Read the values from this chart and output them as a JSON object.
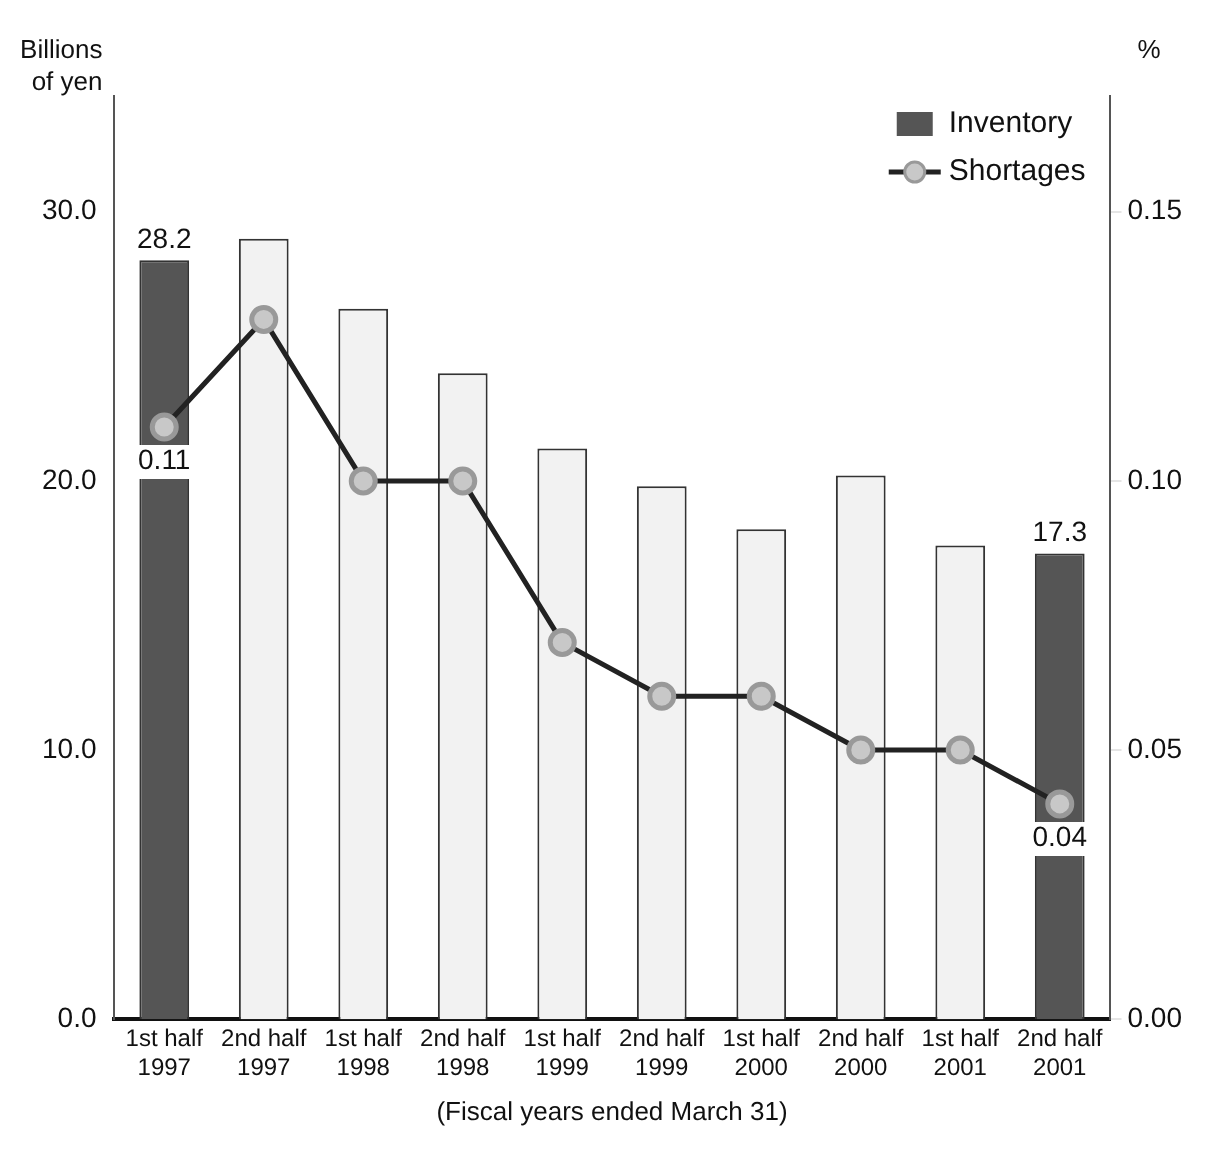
{
  "chart_data": {
    "type": "bar",
    "xlabel": "(Fiscal years ended March 31)",
    "ylabel": "Billions of yen",
    "y2label": "%",
    "categories": [
      "1st half 1997",
      "2nd half 1997",
      "1st half 1998",
      "2nd half 1998",
      "1st half 1999",
      "2nd half 1999",
      "1st half 2000",
      "2nd half 2000",
      "1st half 2001",
      "2nd half 2001"
    ],
    "series": [
      {
        "name": "Inventory",
        "color": "#555555",
        "colors": [
          "#555555",
          "#f2f2f2",
          "#f2f2f2",
          "#f2f2f2",
          "#f2f2f2",
          "#f2f2f2",
          "#f2f2f2",
          "#f2f2f2",
          "#f2f2f2",
          "#555555"
        ],
        "values": [
          28.2,
          29.0,
          26.4,
          24.0,
          21.2,
          19.8,
          18.2,
          20.2,
          17.6,
          17.3
        ],
        "value_labels": [
          "28.2",
          null,
          null,
          null,
          null,
          null,
          null,
          null,
          null,
          "17.3"
        ]
      },
      {
        "name": "Shortages",
        "type": "line",
        "axis": "y2",
        "color": "#222222",
        "values": [
          0.11,
          0.13,
          0.1,
          0.1,
          0.07,
          0.06,
          0.06,
          0.05,
          0.05,
          0.04
        ],
        "value_labels": [
          "0.11",
          null,
          null,
          null,
          null,
          null,
          null,
          null,
          null,
          "0.04"
        ]
      }
    ],
    "ylim": [
      0,
      34.3
    ],
    "yticks": [
      {
        "value": 0,
        "label": "0.0"
      },
      {
        "value": 10,
        "label": "10.0"
      },
      {
        "value": 20,
        "label": "20.0"
      },
      {
        "value": 30,
        "label": "30.0"
      }
    ],
    "y2lim": [
      0,
      0.1715
    ],
    "y2ticks": [
      {
        "value": 0,
        "label": "0.00"
      },
      {
        "value": 0.05,
        "label": "0.05"
      },
      {
        "value": 0.1,
        "label": "0.10"
      },
      {
        "value": 0.15,
        "label": "0.15"
      }
    ],
    "grid": false,
    "legend": "top right",
    "marker": "circle",
    "line_style": "solid"
  }
}
